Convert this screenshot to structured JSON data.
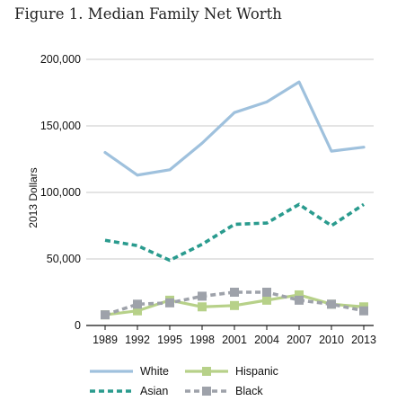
{
  "figure_title": "Figure 1. Median Family Net Worth",
  "chart_data": {
    "type": "line",
    "title": "Figure 1. Median Family Net Worth",
    "xlabel": "",
    "ylabel": "2013 Dollars",
    "x": [
      "1989",
      "1992",
      "1995",
      "1998",
      "2001",
      "2004",
      "2007",
      "2010",
      "2013"
    ],
    "ylim": [
      0,
      200000
    ],
    "yticks": [
      0,
      50000,
      100000,
      150000,
      200000
    ],
    "ytick_labels": [
      "0",
      "50,000",
      "100,000",
      "150,000",
      "200,000"
    ],
    "grid": true,
    "legend_position": "bottom",
    "series": [
      {
        "name": "White",
        "values": [
          130000,
          113000,
          117000,
          137000,
          160000,
          168000,
          183000,
          131000,
          134000
        ],
        "color": "#9fc1dd",
        "style": "solid",
        "marker": "none"
      },
      {
        "name": "Hispanic",
        "values": [
          8000,
          11000,
          19000,
          14000,
          15000,
          19000,
          23000,
          16000,
          14000
        ],
        "color": "#b7d189",
        "style": "solid",
        "marker": "square"
      },
      {
        "name": "Asian",
        "values": [
          64000,
          60000,
          49000,
          61000,
          76000,
          77000,
          91000,
          75000,
          91000
        ],
        "color": "#2a9b8e",
        "style": "dashed",
        "marker": "none"
      },
      {
        "name": "Black",
        "values": [
          8000,
          16000,
          17000,
          22000,
          25000,
          25000,
          19000,
          16000,
          11000
        ],
        "color": "#9ea2aa",
        "style": "dashed",
        "marker": "square"
      }
    ],
    "legend_order": [
      "White",
      "Hispanic",
      "Asian",
      "Black"
    ]
  }
}
